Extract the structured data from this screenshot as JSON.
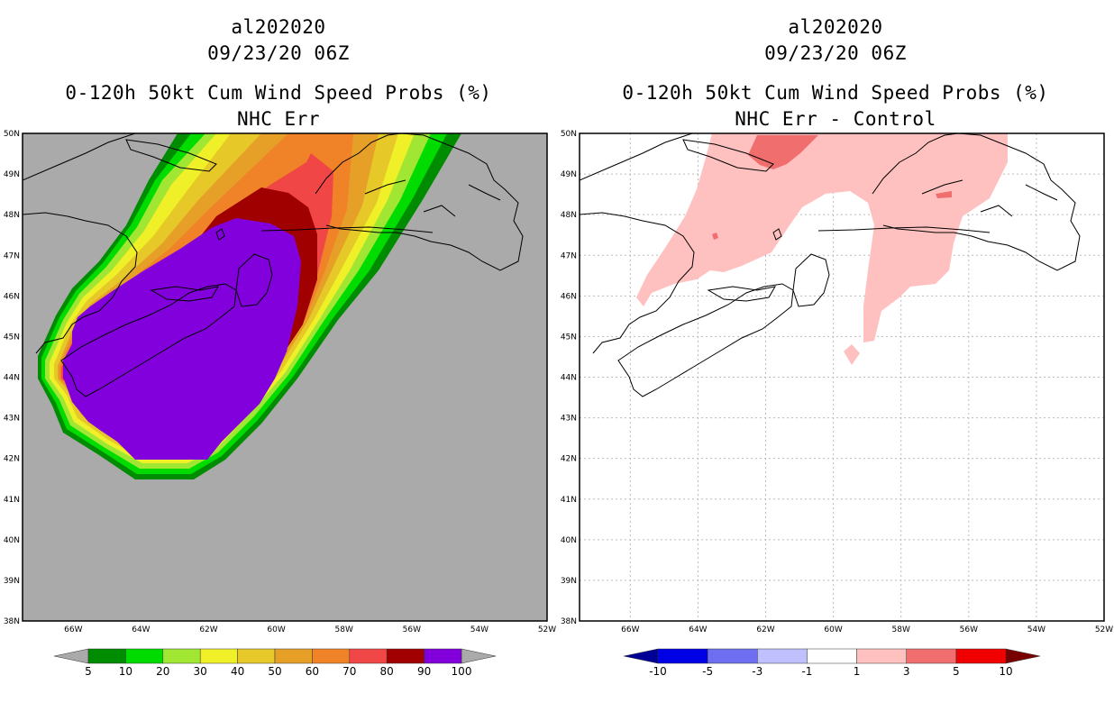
{
  "panels": [
    {
      "id": "left",
      "title_lines": [
        "al202020",
        "09/23/20 06Z",
        "0-120h 50kt Cum Wind Speed Probs (%)",
        "NHC Err"
      ],
      "background": "#aaaaaa",
      "colorbar": {
        "labels": [
          "5",
          "10",
          "20",
          "30",
          "40",
          "50",
          "60",
          "70",
          "80",
          "90",
          "100"
        ],
        "colors": [
          "#008c00",
          "#00dc00",
          "#a0e632",
          "#f0f028",
          "#e6c828",
          "#e6a028",
          "#f08228",
          "#f04646",
          "#a00000",
          "#8200dc"
        ],
        "end_low": "#aaaaaa",
        "end_high": "#aaaaaa"
      }
    },
    {
      "id": "right",
      "title_lines": [
        "al202020",
        "09/23/20 06Z",
        "0-120h 50kt Cum Wind Speed Probs (%)",
        "NHC Err - Control"
      ],
      "background": "#ffffff",
      "colorbar": {
        "labels": [
          "-10",
          "-5",
          "-3",
          "-1",
          "1",
          "3",
          "5",
          "10"
        ],
        "colors": [
          "#0000e6",
          "#6e6ef0",
          "#c0c0ff",
          "#ffffff",
          "#ffc0c0",
          "#f06e6e",
          "#f00000"
        ],
        "end_low": "#000096",
        "end_high": "#780000"
      }
    }
  ],
  "axes": {
    "lat_labels": [
      "50N",
      "49N",
      "48N",
      "47N",
      "46N",
      "45N",
      "44N",
      "43N",
      "42N",
      "41N",
      "40N",
      "39N",
      "38N"
    ],
    "lon_labels": [
      "66W",
      "64W",
      "62W",
      "60W",
      "58W",
      "56W",
      "54W",
      "52W"
    ]
  },
  "map_data": {
    "lon_range": [
      -67.5,
      -52
    ],
    "lat_range": [
      38,
      50
    ],
    "contour_levels": [
      5,
      10,
      20,
      30,
      40,
      50,
      60,
      70,
      80,
      90,
      100
    ],
    "diff_levels": [
      -10,
      -5,
      -3,
      -1,
      1,
      3,
      5,
      10
    ]
  }
}
